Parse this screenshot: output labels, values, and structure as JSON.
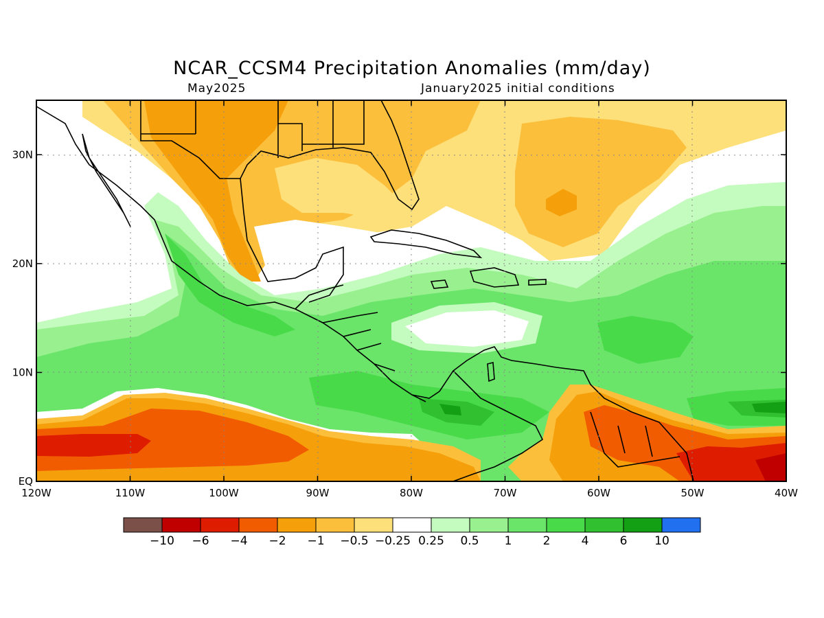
{
  "title": "NCAR_CCSM4 Precipitation Anomalies (mm/day)",
  "subtitle_left": "May2025",
  "subtitle_right": "January2025 initial conditions",
  "map": {
    "lon_labels": [
      "120W",
      "110W",
      "100W",
      "90W",
      "80W",
      "70W",
      "60W",
      "50W",
      "40W"
    ],
    "lat_labels": [
      "EQ",
      "10N",
      "20N",
      "30N"
    ],
    "lon_range": [
      -120,
      -40
    ],
    "lat_range": [
      0,
      35
    ],
    "grid": "dotted"
  },
  "colorbar": {
    "labels": [
      "−10",
      "−6",
      "−4",
      "−2",
      "−1",
      "−0.5",
      "−0.25",
      "0.25",
      "0.5",
      "1",
      "2",
      "4",
      "6",
      "10"
    ],
    "colors": [
      "#7a5048",
      "#c00000",
      "#dd1c00",
      "#f25c00",
      "#f59f0a",
      "#fbbf3c",
      "#fde07a",
      "#ffffff",
      "#c4fbbe",
      "#98f08e",
      "#6ae56a",
      "#48da48",
      "#30c030",
      "#14a014",
      "#2070f0"
    ]
  },
  "field_colors": {
    "ocean_dry_strong": "#dd1c00",
    "dry_moderate": "#f25c00",
    "dry_weak": "#f59f0a",
    "dry_light": "#fbbf3c",
    "dry_very_light": "#fde07a",
    "wet_very_light": "#c4fbbe",
    "wet_light": "#98f08e",
    "wet_moderate": "#6ae56a",
    "wet_strong": "#48da48",
    "wet_very_strong": "#30c030",
    "wet_extreme": "#14a014"
  }
}
